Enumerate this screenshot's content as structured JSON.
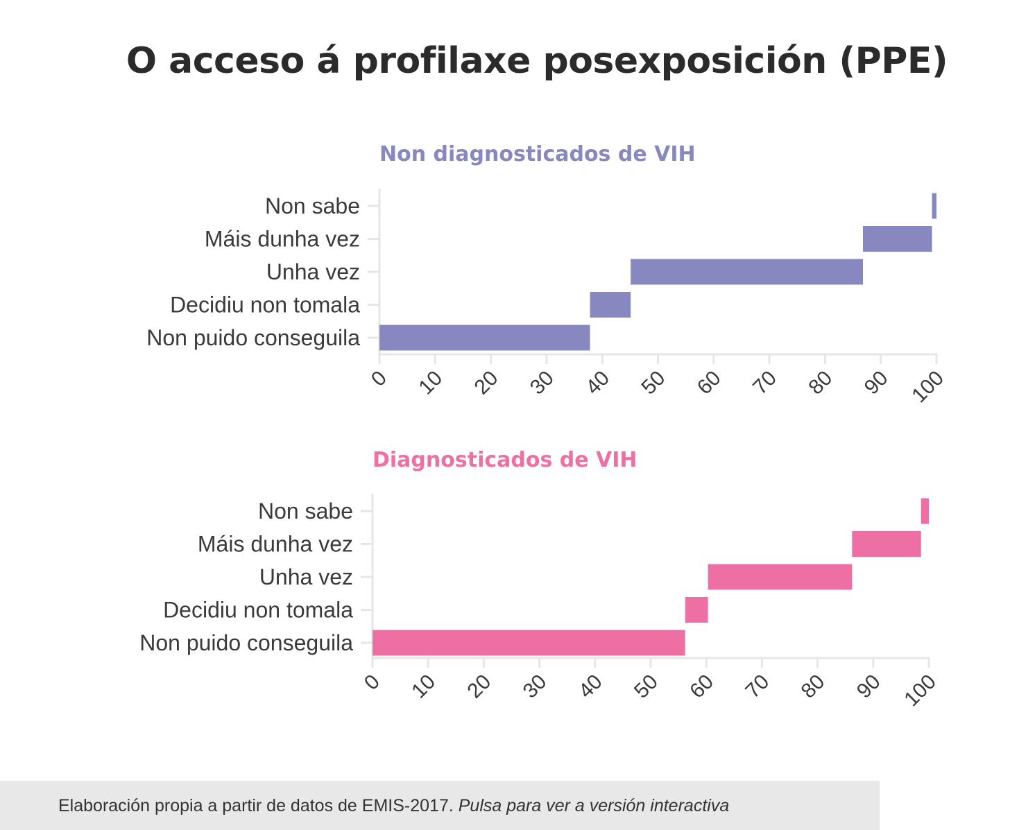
{
  "title": "O acceso á profilaxe posexposición (PPE)",
  "footer": {
    "source": "Elaboración propia a partir de datos de EMIS-2017.",
    "link": "Pulsa para ver a versión interactiva"
  },
  "chart_data": [
    {
      "type": "bar",
      "subtype": "stacked-floating-horizontal",
      "title": "Non diagnosticados de VIH",
      "color": "#8888c0",
      "categories": [
        "Non sabe",
        "Máis dunha vez",
        "Unha vez",
        "Decidiu non tomala",
        "Non puido conseguila"
      ],
      "ranges": [
        [
          99.2,
          100
        ],
        [
          86.8,
          99.2
        ],
        [
          45.1,
          86.8
        ],
        [
          37.8,
          45.1
        ],
        [
          0,
          37.8
        ]
      ],
      "xlim": [
        0,
        100
      ],
      "xticks": [
        0,
        10,
        20,
        30,
        40,
        50,
        60,
        70,
        80,
        90,
        100
      ],
      "grid": false
    },
    {
      "type": "bar",
      "subtype": "stacked-floating-horizontal",
      "title": "Diagnosticados de VIH",
      "color": "#ee6fa3",
      "categories": [
        "Non sabe",
        "Máis dunha vez",
        "Unha vez",
        "Decidiu non tomala",
        "Non puido conseguila"
      ],
      "ranges": [
        [
          98.6,
          100
        ],
        [
          86.2,
          98.6
        ],
        [
          60.3,
          86.2
        ],
        [
          56.2,
          60.3
        ],
        [
          0,
          56.2
        ]
      ],
      "xlim": [
        0,
        100
      ],
      "xticks": [
        0,
        10,
        20,
        30,
        40,
        50,
        60,
        70,
        80,
        90,
        100
      ],
      "grid": false
    }
  ]
}
